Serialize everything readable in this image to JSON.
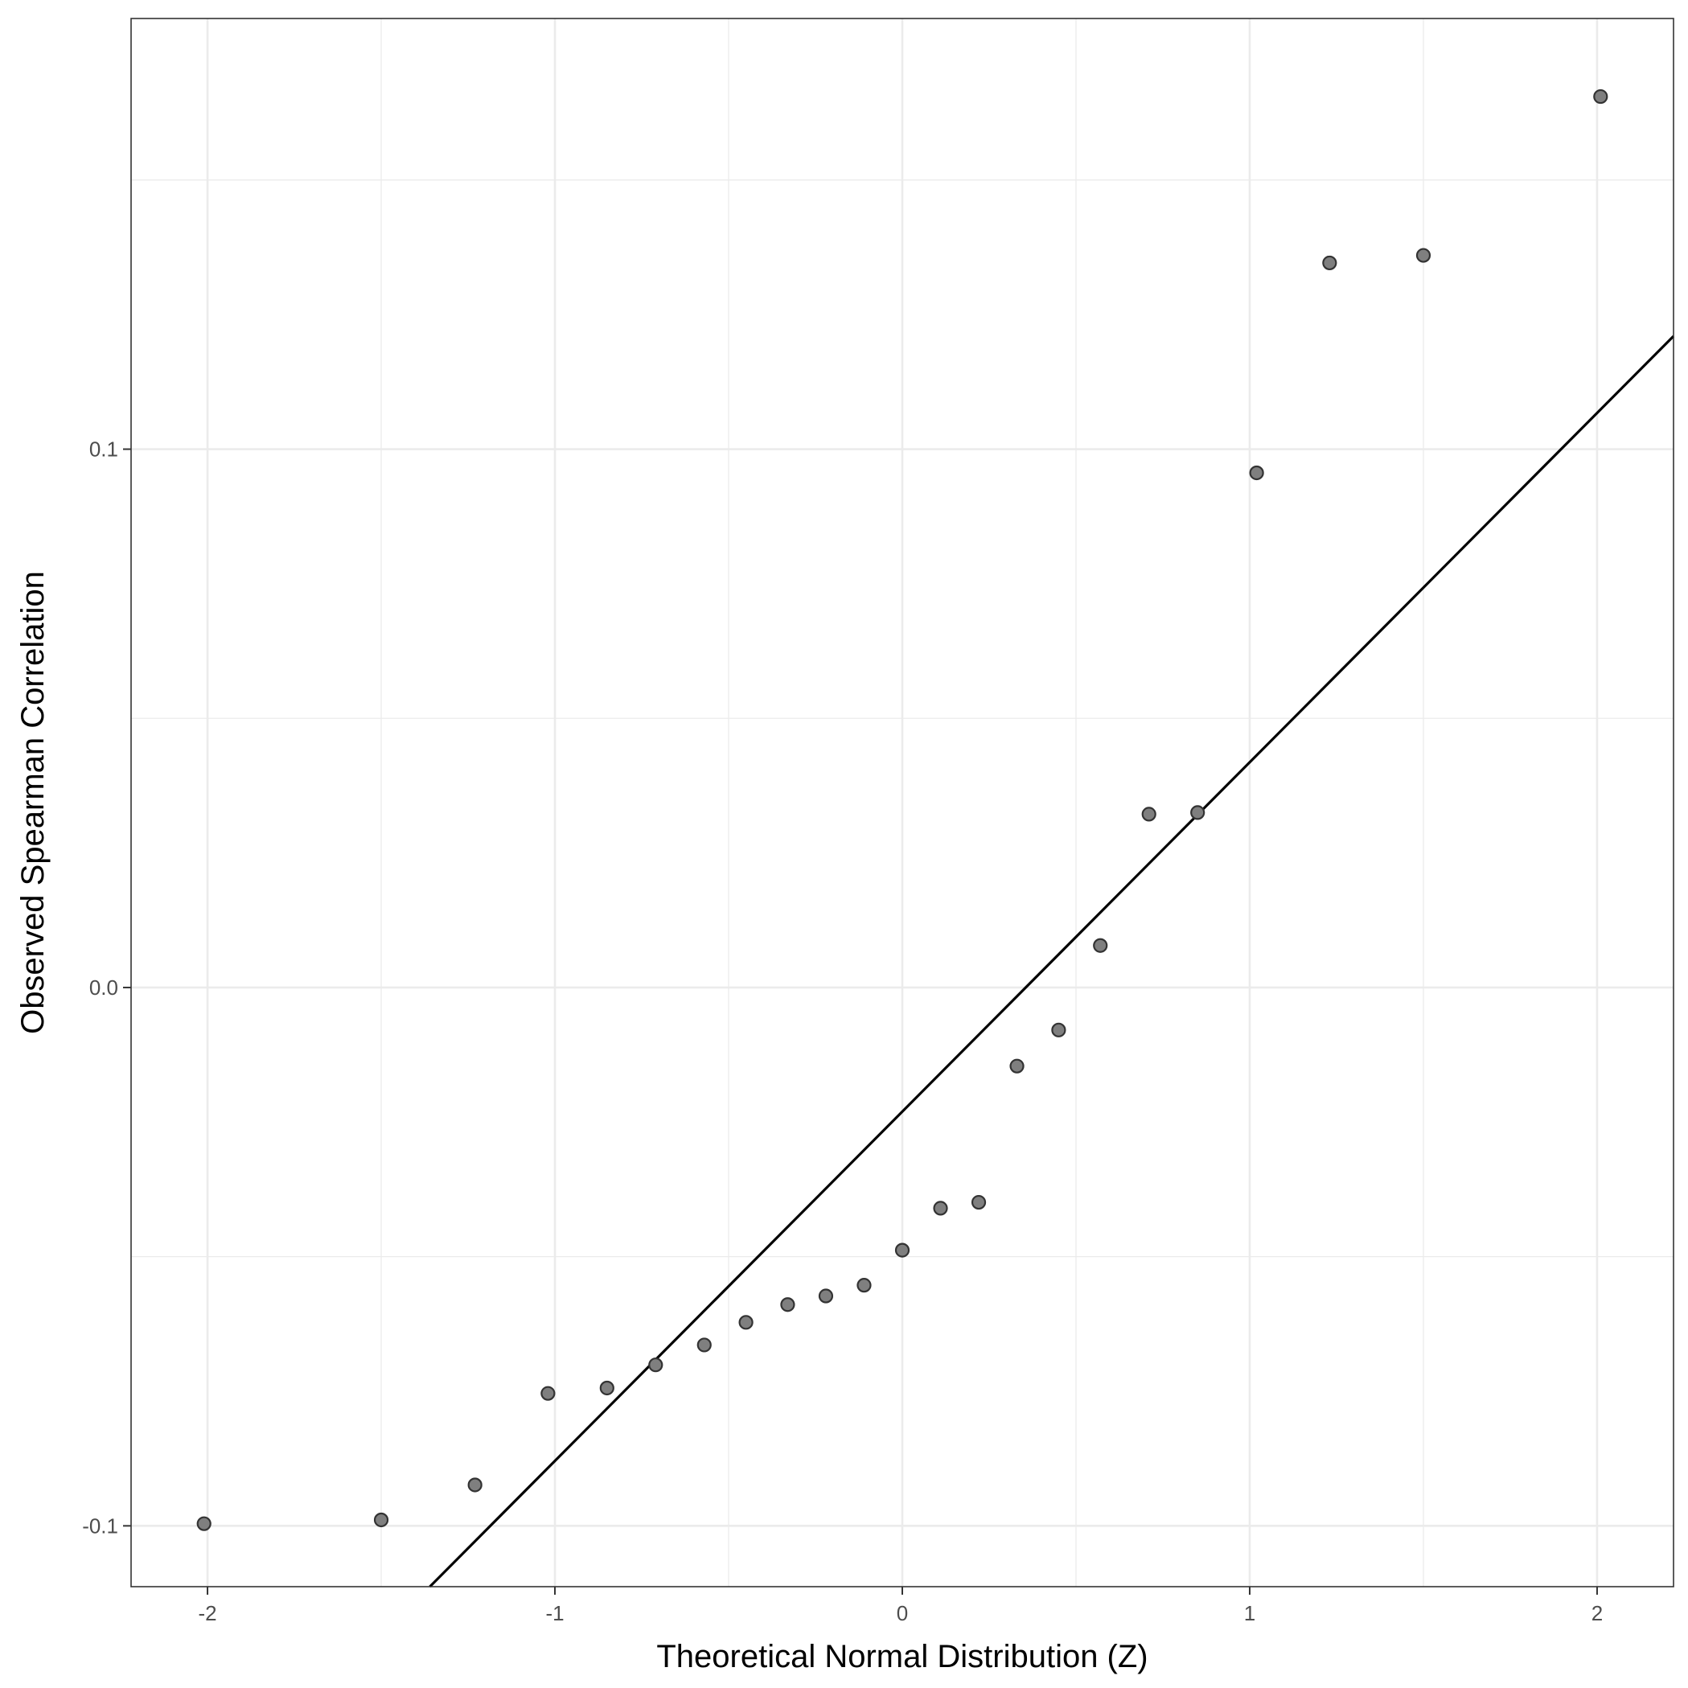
{
  "chart_data": {
    "type": "scatter",
    "title": "",
    "xlabel": "Theoretical Normal Distribution (Z)",
    "ylabel": "Observed Spearman Correlation",
    "xlim": [
      -2.22,
      2.22
    ],
    "ylim": [
      -0.1113,
      0.18
    ],
    "x_ticks": [
      -2,
      -1,
      0,
      1,
      2
    ],
    "x_tick_labels": [
      "-2",
      "-1",
      "0",
      "1",
      "2"
    ],
    "y_ticks": [
      -0.1,
      0.0,
      0.1
    ],
    "y_tick_labels": [
      "-0.1",
      "0.0",
      "0.1"
    ],
    "x_minor_gridlines": [
      -1.5,
      -0.5,
      0.5,
      1.5
    ],
    "y_minor_gridlines": [
      -0.05,
      0.05,
      0.15
    ],
    "grid": true,
    "series": [
      {
        "points": [
          {
            "x": -2.01,
            "y": -0.0996
          },
          {
            "x": -1.5,
            "y": -0.0989
          },
          {
            "x": -1.23,
            "y": -0.0924
          },
          {
            "x": -1.02,
            "y": -0.0754
          },
          {
            "x": -0.85,
            "y": -0.0744
          },
          {
            "x": -0.71,
            "y": -0.0701
          },
          {
            "x": -0.57,
            "y": -0.0664
          },
          {
            "x": -0.45,
            "y": -0.0622
          },
          {
            "x": -0.33,
            "y": -0.0589
          },
          {
            "x": -0.22,
            "y": -0.0573
          },
          {
            "x": -0.11,
            "y": -0.0553
          },
          {
            "x": 0.0,
            "y": -0.0488
          },
          {
            "x": 0.11,
            "y": -0.041
          },
          {
            "x": 0.22,
            "y": -0.0399
          },
          {
            "x": 0.33,
            "y": -0.0146
          },
          {
            "x": 0.45,
            "y": -0.0079
          },
          {
            "x": 0.57,
            "y": 0.0078
          },
          {
            "x": 0.71,
            "y": 0.0322
          },
          {
            "x": 0.85,
            "y": 0.0325
          },
          {
            "x": 1.02,
            "y": 0.0956
          },
          {
            "x": 1.23,
            "y": 0.1346
          },
          {
            "x": 1.5,
            "y": 0.136
          },
          {
            "x": 2.01,
            "y": 0.1655
          }
        ],
        "color": "#7f7f7f"
      }
    ],
    "reference_line": {
      "x": [
        -1.36,
        2.22
      ],
      "y": [
        -0.1113,
        0.121
      ],
      "color": "#000000"
    }
  }
}
